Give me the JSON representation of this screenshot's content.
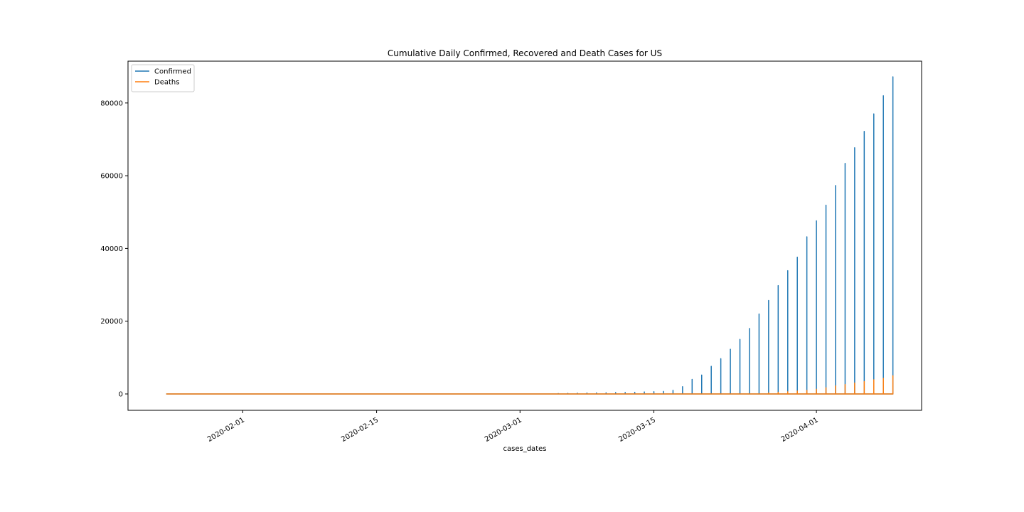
{
  "chart_data": {
    "type": "line",
    "title": "Cumulative Daily Confirmed, Recovered and Death Cases for US",
    "xlabel": "cases_dates",
    "ylabel": "",
    "x_axis_type": "date",
    "xlim": [
      "2020-01-20",
      "2020-04-12"
    ],
    "ylim": [
      -4500,
      91500
    ],
    "x_ticks": [
      "2020-02-01",
      "2020-02-15",
      "2020-03-01",
      "2020-03-15",
      "2020-04-01"
    ],
    "y_ticks": [
      0,
      20000,
      40000,
      60000,
      80000
    ],
    "y_tick_labels": [
      "0",
      "20000",
      "40000",
      "60000",
      "80000"
    ],
    "grid": false,
    "legend_position": "upper-left",
    "series": [
      {
        "name": "Confirmed",
        "color": "#1f77b4",
        "points": [
          [
            "2020-01-24",
            0
          ],
          [
            "2020-03-05",
            0
          ],
          [
            "2020-03-05",
            120
          ],
          [
            "2020-03-05",
            0
          ],
          [
            "2020-03-06",
            0
          ],
          [
            "2020-03-06",
            160
          ],
          [
            "2020-03-06",
            0
          ],
          [
            "2020-03-07",
            0
          ],
          [
            "2020-03-07",
            210
          ],
          [
            "2020-03-07",
            0
          ],
          [
            "2020-03-08",
            0
          ],
          [
            "2020-03-08",
            260
          ],
          [
            "2020-03-08",
            0
          ],
          [
            "2020-03-09",
            0
          ],
          [
            "2020-03-09",
            290
          ],
          [
            "2020-03-09",
            0
          ],
          [
            "2020-03-10",
            0
          ],
          [
            "2020-03-10",
            320
          ],
          [
            "2020-03-10",
            0
          ],
          [
            "2020-03-11",
            0
          ],
          [
            "2020-03-11",
            380
          ],
          [
            "2020-03-11",
            0
          ],
          [
            "2020-03-12",
            0
          ],
          [
            "2020-03-12",
            420
          ],
          [
            "2020-03-12",
            0
          ],
          [
            "2020-03-13",
            0
          ],
          [
            "2020-03-13",
            470
          ],
          [
            "2020-03-13",
            0
          ],
          [
            "2020-03-14",
            0
          ],
          [
            "2020-03-14",
            560
          ],
          [
            "2020-03-14",
            0
          ],
          [
            "2020-03-15",
            0
          ],
          [
            "2020-03-15",
            620
          ],
          [
            "2020-03-15",
            0
          ],
          [
            "2020-03-16",
            0
          ],
          [
            "2020-03-16",
            700
          ],
          [
            "2020-03-16",
            0
          ],
          [
            "2020-03-17",
            0
          ],
          [
            "2020-03-17",
            1000
          ],
          [
            "2020-03-17",
            0
          ],
          [
            "2020-03-18",
            0
          ],
          [
            "2020-03-18",
            2000
          ],
          [
            "2020-03-18",
            0
          ],
          [
            "2020-03-19",
            0
          ],
          [
            "2020-03-19",
            4000
          ],
          [
            "2020-03-19",
            0
          ],
          [
            "2020-03-20",
            0
          ],
          [
            "2020-03-20",
            5200
          ],
          [
            "2020-03-20",
            0
          ],
          [
            "2020-03-21",
            0
          ],
          [
            "2020-03-21",
            7600
          ],
          [
            "2020-03-21",
            0
          ],
          [
            "2020-03-22",
            0
          ],
          [
            "2020-03-22",
            9700
          ],
          [
            "2020-03-22",
            0
          ],
          [
            "2020-03-23",
            0
          ],
          [
            "2020-03-23",
            12300
          ],
          [
            "2020-03-23",
            0
          ],
          [
            "2020-03-24",
            0
          ],
          [
            "2020-03-24",
            15000
          ],
          [
            "2020-03-24",
            0
          ],
          [
            "2020-03-25",
            0
          ],
          [
            "2020-03-25",
            18000
          ],
          [
            "2020-03-25",
            0
          ],
          [
            "2020-03-26",
            0
          ],
          [
            "2020-03-26",
            22000
          ],
          [
            "2020-03-26",
            0
          ],
          [
            "2020-03-27",
            0
          ],
          [
            "2020-03-27",
            25700
          ],
          [
            "2020-03-27",
            0
          ],
          [
            "2020-03-28",
            0
          ],
          [
            "2020-03-28",
            29800
          ],
          [
            "2020-03-28",
            0
          ],
          [
            "2020-03-29",
            0
          ],
          [
            "2020-03-29",
            33900
          ],
          [
            "2020-03-29",
            0
          ],
          [
            "2020-03-30",
            0
          ],
          [
            "2020-03-30",
            37600
          ],
          [
            "2020-03-30",
            0
          ],
          [
            "2020-03-31",
            0
          ],
          [
            "2020-03-31",
            43200
          ],
          [
            "2020-03-31",
            0
          ],
          [
            "2020-04-01",
            0
          ],
          [
            "2020-04-01",
            47600
          ],
          [
            "2020-04-01",
            0
          ],
          [
            "2020-04-02",
            0
          ],
          [
            "2020-04-02",
            51900
          ],
          [
            "2020-04-02",
            0
          ],
          [
            "2020-04-03",
            0
          ],
          [
            "2020-04-03",
            57300
          ],
          [
            "2020-04-03",
            0
          ],
          [
            "2020-04-04",
            0
          ],
          [
            "2020-04-04",
            63400
          ],
          [
            "2020-04-04",
            0
          ],
          [
            "2020-04-05",
            0
          ],
          [
            "2020-04-05",
            67700
          ],
          [
            "2020-04-05",
            0
          ],
          [
            "2020-04-06",
            0
          ],
          [
            "2020-04-06",
            72200
          ],
          [
            "2020-04-06",
            0
          ],
          [
            "2020-04-07",
            0
          ],
          [
            "2020-04-07",
            77000
          ],
          [
            "2020-04-07",
            0
          ],
          [
            "2020-04-08",
            0
          ],
          [
            "2020-04-08",
            82000
          ],
          [
            "2020-04-08",
            0
          ],
          [
            "2020-04-09",
            0
          ],
          [
            "2020-04-09",
            87200
          ],
          [
            "2020-04-09",
            0
          ]
        ]
      },
      {
        "name": "Deaths",
        "color": "#ff7f0e",
        "points": [
          [
            "2020-01-24",
            0
          ],
          [
            "2020-03-27",
            0
          ],
          [
            "2020-03-27",
            300
          ],
          [
            "2020-03-27",
            0
          ],
          [
            "2020-03-28",
            0
          ],
          [
            "2020-03-28",
            450
          ],
          [
            "2020-03-28",
            0
          ],
          [
            "2020-03-29",
            0
          ],
          [
            "2020-03-29",
            600
          ],
          [
            "2020-03-29",
            0
          ],
          [
            "2020-03-30",
            0
          ],
          [
            "2020-03-30",
            800
          ],
          [
            "2020-03-30",
            0
          ],
          [
            "2020-03-31",
            0
          ],
          [
            "2020-03-31",
            1000
          ],
          [
            "2020-03-31",
            0
          ],
          [
            "2020-04-01",
            0
          ],
          [
            "2020-04-01",
            1300
          ],
          [
            "2020-04-01",
            0
          ],
          [
            "2020-04-02",
            0
          ],
          [
            "2020-04-02",
            1700
          ],
          [
            "2020-04-02",
            0
          ],
          [
            "2020-04-03",
            0
          ],
          [
            "2020-04-03",
            2200
          ],
          [
            "2020-04-03",
            0
          ],
          [
            "2020-04-04",
            0
          ],
          [
            "2020-04-04",
            2600
          ],
          [
            "2020-04-04",
            0
          ],
          [
            "2020-04-05",
            0
          ],
          [
            "2020-04-05",
            3000
          ],
          [
            "2020-04-05",
            0
          ],
          [
            "2020-04-06",
            0
          ],
          [
            "2020-04-06",
            3400
          ],
          [
            "2020-04-06",
            0
          ],
          [
            "2020-04-07",
            0
          ],
          [
            "2020-04-07",
            3900
          ],
          [
            "2020-04-07",
            0
          ],
          [
            "2020-04-08",
            0
          ],
          [
            "2020-04-08",
            4300
          ],
          [
            "2020-04-08",
            0
          ],
          [
            "2020-04-09",
            0
          ],
          [
            "2020-04-09",
            5000
          ],
          [
            "2020-04-09",
            0
          ]
        ]
      }
    ]
  }
}
